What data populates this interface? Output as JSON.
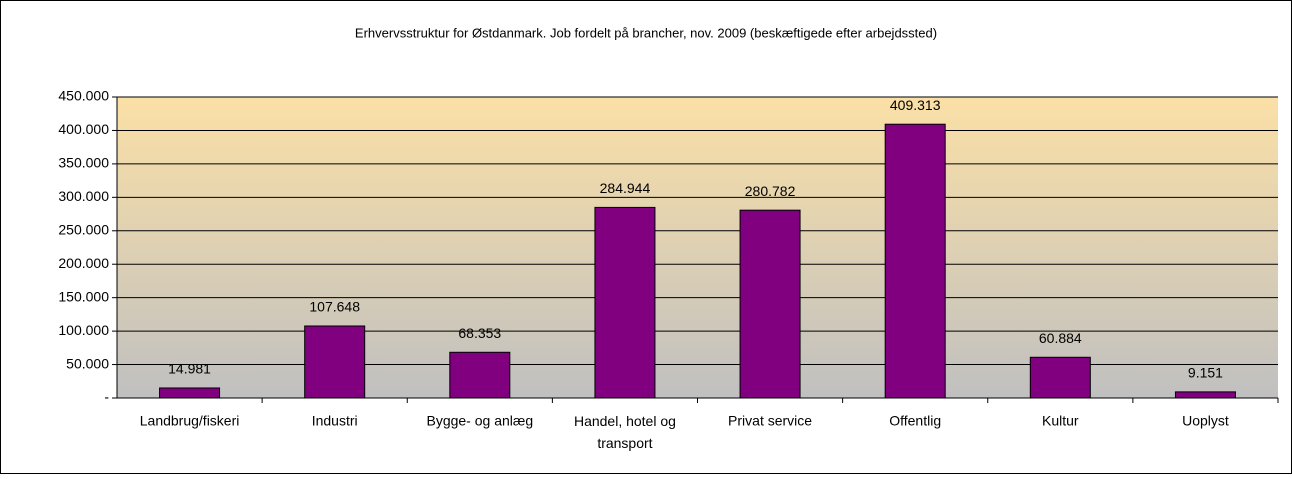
{
  "chart_data": {
    "type": "bar",
    "title": "Erhvervsstruktur for Østdanmark. Job fordelt på brancher, nov. 2009 (beskæftigede efter arbejdssted)",
    "categories": [
      "Landbrug/fiskeri",
      "Industri",
      "Bygge- og anlæg",
      "Handel, hotel og transport",
      "Privat service",
      "Offentlig",
      "Kultur",
      "Uoplyst"
    ],
    "values": [
      14981,
      107648,
      68353,
      284944,
      280782,
      409313,
      60884,
      9151
    ],
    "value_labels": [
      "14.981",
      "107.648",
      "68.353",
      "284.944",
      "280.782",
      "409.313",
      "60.884",
      "9.151"
    ],
    "color": "#800080",
    "ylim": [
      0,
      450000
    ],
    "yticks": [
      {
        "value": 0,
        "label": "-"
      },
      {
        "value": 50000,
        "label": "50.000"
      },
      {
        "value": 100000,
        "label": "100.000"
      },
      {
        "value": 150000,
        "label": "150.000"
      },
      {
        "value": 200000,
        "label": "200.000"
      },
      {
        "value": 250000,
        "label": "250.000"
      },
      {
        "value": 300000,
        "label": "300.000"
      },
      {
        "value": 350000,
        "label": "350.000"
      },
      {
        "value": 400000,
        "label": "400.000"
      },
      {
        "value": 450000,
        "label": "450.000"
      }
    ],
    "grid": true
  }
}
